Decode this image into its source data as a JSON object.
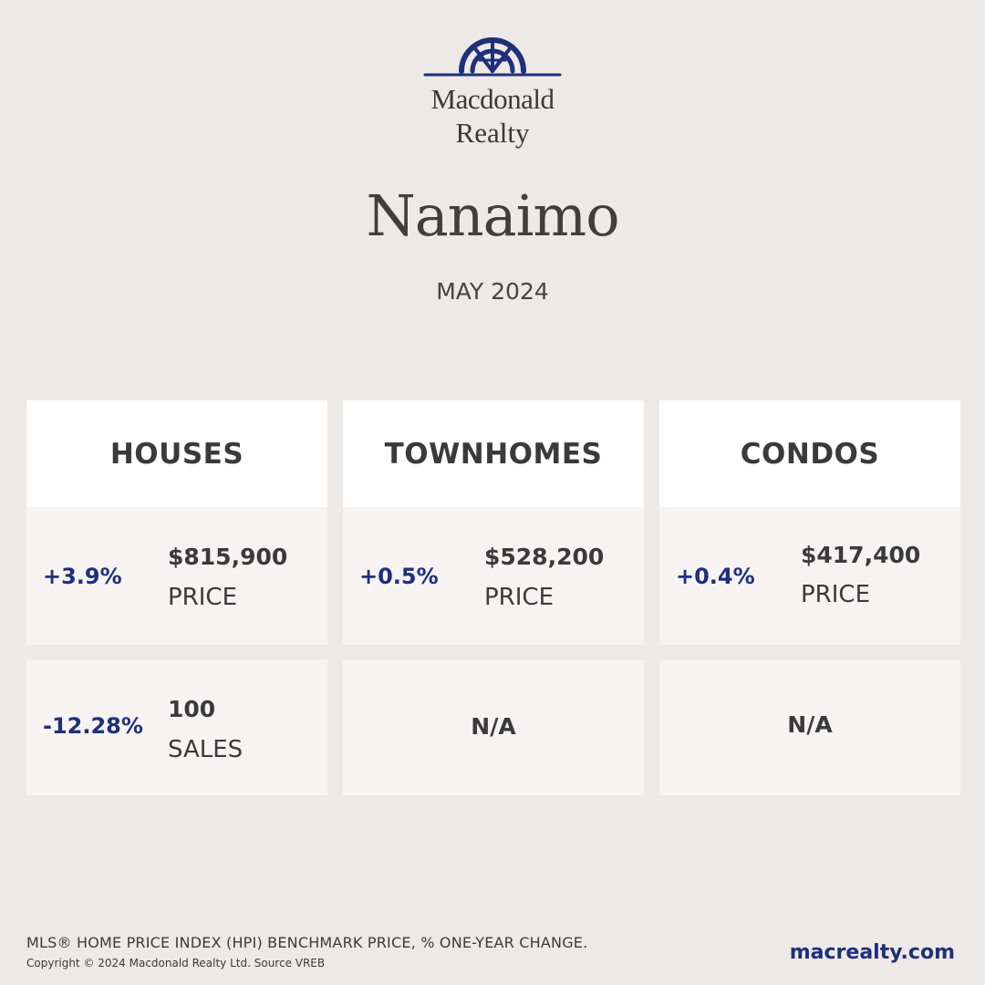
{
  "brand": {
    "line1": "Macdonald",
    "line2": "Realty",
    "color": "#1f2f7a"
  },
  "city": "Nanaimo",
  "period": "MAY 2024",
  "categories": [
    {
      "title": "HOUSES",
      "price_change": "+3.9%",
      "price": "$815,900",
      "price_label": "PRICE",
      "sales_change": "-12.28%",
      "sales": "100",
      "sales_label": "SALES"
    },
    {
      "title": "TOWNHOMES",
      "price_change": "+0.5%",
      "price": "$528,200",
      "price_label": "PRICE",
      "sales_na": "N/A"
    },
    {
      "title": "CONDOS",
      "price_change": "+0.4%",
      "price": "$417,400",
      "price_label": "PRICE",
      "sales_na": "N/A"
    }
  ],
  "footnote": "MLS® HOME PRICE INDEX (HPI) BENCHMARK PRICE, % ONE-YEAR CHANGE.",
  "copyright": "Copyright © 2024 Macdonald Realty Ltd. Source VREB",
  "website": "macrealty.com"
}
